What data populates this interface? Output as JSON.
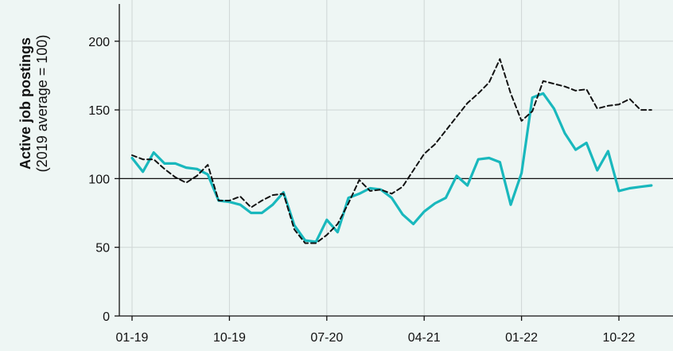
{
  "chart_data": {
    "type": "line",
    "title": "",
    "ylabel_bold": "Active job postings",
    "ylabel_sub": "(2019 average = 100)",
    "xlabel": "",
    "ylim": [
      0,
      230
    ],
    "yticks": [
      0,
      50,
      100,
      150,
      200
    ],
    "xticks": [
      "01-19",
      "10-19",
      "07-20",
      "04-21",
      "01-22",
      "10-22"
    ],
    "grid": true,
    "reference_line": 100,
    "colors": {
      "teal": "#19b8bd",
      "dashed": "#111111",
      "grid": "#cfd6d5",
      "background": "#eef6f4"
    },
    "series": [
      {
        "style": "solid",
        "color": "#19b8bd",
        "x": [
          "2019-01",
          "2019-02",
          "2019-03",
          "2019-04",
          "2019-05",
          "2019-06",
          "2019-07",
          "2019-08",
          "2019-09",
          "2019-10",
          "2019-11",
          "2019-12",
          "2020-01",
          "2020-02",
          "2020-03",
          "2020-04",
          "2020-05",
          "2020-06",
          "2020-07",
          "2020-08",
          "2020-09",
          "2020-10",
          "2020-11",
          "2020-12",
          "2021-01",
          "2021-02",
          "2021-03",
          "2021-04",
          "2021-05",
          "2021-06",
          "2021-07",
          "2021-08",
          "2021-09",
          "2021-10",
          "2021-11",
          "2021-12",
          "2022-01",
          "2022-02",
          "2022-03",
          "2022-04",
          "2022-05",
          "2022-06",
          "2022-07",
          "2022-08",
          "2022-09",
          "2022-10",
          "2022-11",
          "2022-12",
          "2023-01"
        ],
        "values": [
          115,
          105,
          119,
          111,
          111,
          108,
          107,
          103,
          84,
          83,
          81,
          75,
          75,
          81,
          90,
          66,
          55,
          54,
          70,
          61,
          86,
          89,
          93,
          92,
          86,
          74,
          67,
          76,
          82,
          86,
          102,
          95,
          114,
          115,
          112,
          81,
          104,
          159,
          162,
          151,
          133,
          121,
          126,
          106,
          120,
          91,
          93,
          94,
          95
        ]
      },
      {
        "style": "dashed",
        "color": "#111111",
        "x": [
          "2019-01",
          "2019-02",
          "2019-03",
          "2019-04",
          "2019-05",
          "2019-06",
          "2019-07",
          "2019-08",
          "2019-09",
          "2019-10",
          "2019-11",
          "2019-12",
          "2020-01",
          "2020-02",
          "2020-03",
          "2020-04",
          "2020-05",
          "2020-06",
          "2020-07",
          "2020-08",
          "2020-09",
          "2020-10",
          "2020-11",
          "2020-12",
          "2021-01",
          "2021-02",
          "2021-03",
          "2021-04",
          "2021-05",
          "2021-06",
          "2021-07",
          "2021-08",
          "2021-09",
          "2021-10",
          "2021-11",
          "2021-12",
          "2022-01",
          "2022-02",
          "2022-03",
          "2022-04",
          "2022-05",
          "2022-06",
          "2022-07",
          "2022-08",
          "2022-09",
          "2022-10",
          "2022-11",
          "2022-12",
          "2023-01"
        ],
        "values": [
          117,
          114,
          114,
          107,
          101,
          97,
          102,
          110,
          84,
          84,
          87,
          79,
          84,
          88,
          89,
          63,
          53,
          53,
          59,
          67,
          82,
          99,
          91,
          92,
          89,
          94,
          106,
          118,
          125,
          135,
          145,
          155,
          162,
          170,
          187,
          162,
          142,
          149,
          171,
          169,
          167,
          164,
          165,
          151,
          153,
          154,
          158,
          150,
          150
        ]
      }
    ]
  }
}
